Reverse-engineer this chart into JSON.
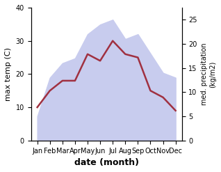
{
  "months": [
    "Jan",
    "Feb",
    "Mar",
    "Apr",
    "May",
    "Jun",
    "Jul",
    "Aug",
    "Sep",
    "Oct",
    "Nov",
    "Dec"
  ],
  "max_temp": [
    10,
    15,
    18,
    18,
    26,
    24,
    30,
    26,
    25,
    15,
    13,
    9
  ],
  "precipitation": [
    5,
    13,
    16,
    17,
    22,
    24,
    25,
    21,
    22,
    18,
    14,
    13
  ],
  "temp_color": "#a03040",
  "precip_fill_color": "#c8ccee",
  "ylabel_left": "max temp (C)",
  "ylabel_right": "med. precipitation\n(kg/m2)",
  "xlabel": "date (month)",
  "ylim_left": [
    0,
    40
  ],
  "ylim_right": [
    0,
    27.5
  ],
  "yticks_left": [
    0,
    10,
    20,
    30,
    40
  ],
  "yticks_right": [
    0,
    5,
    10,
    15,
    20,
    25
  ],
  "background_color": "#ffffff"
}
